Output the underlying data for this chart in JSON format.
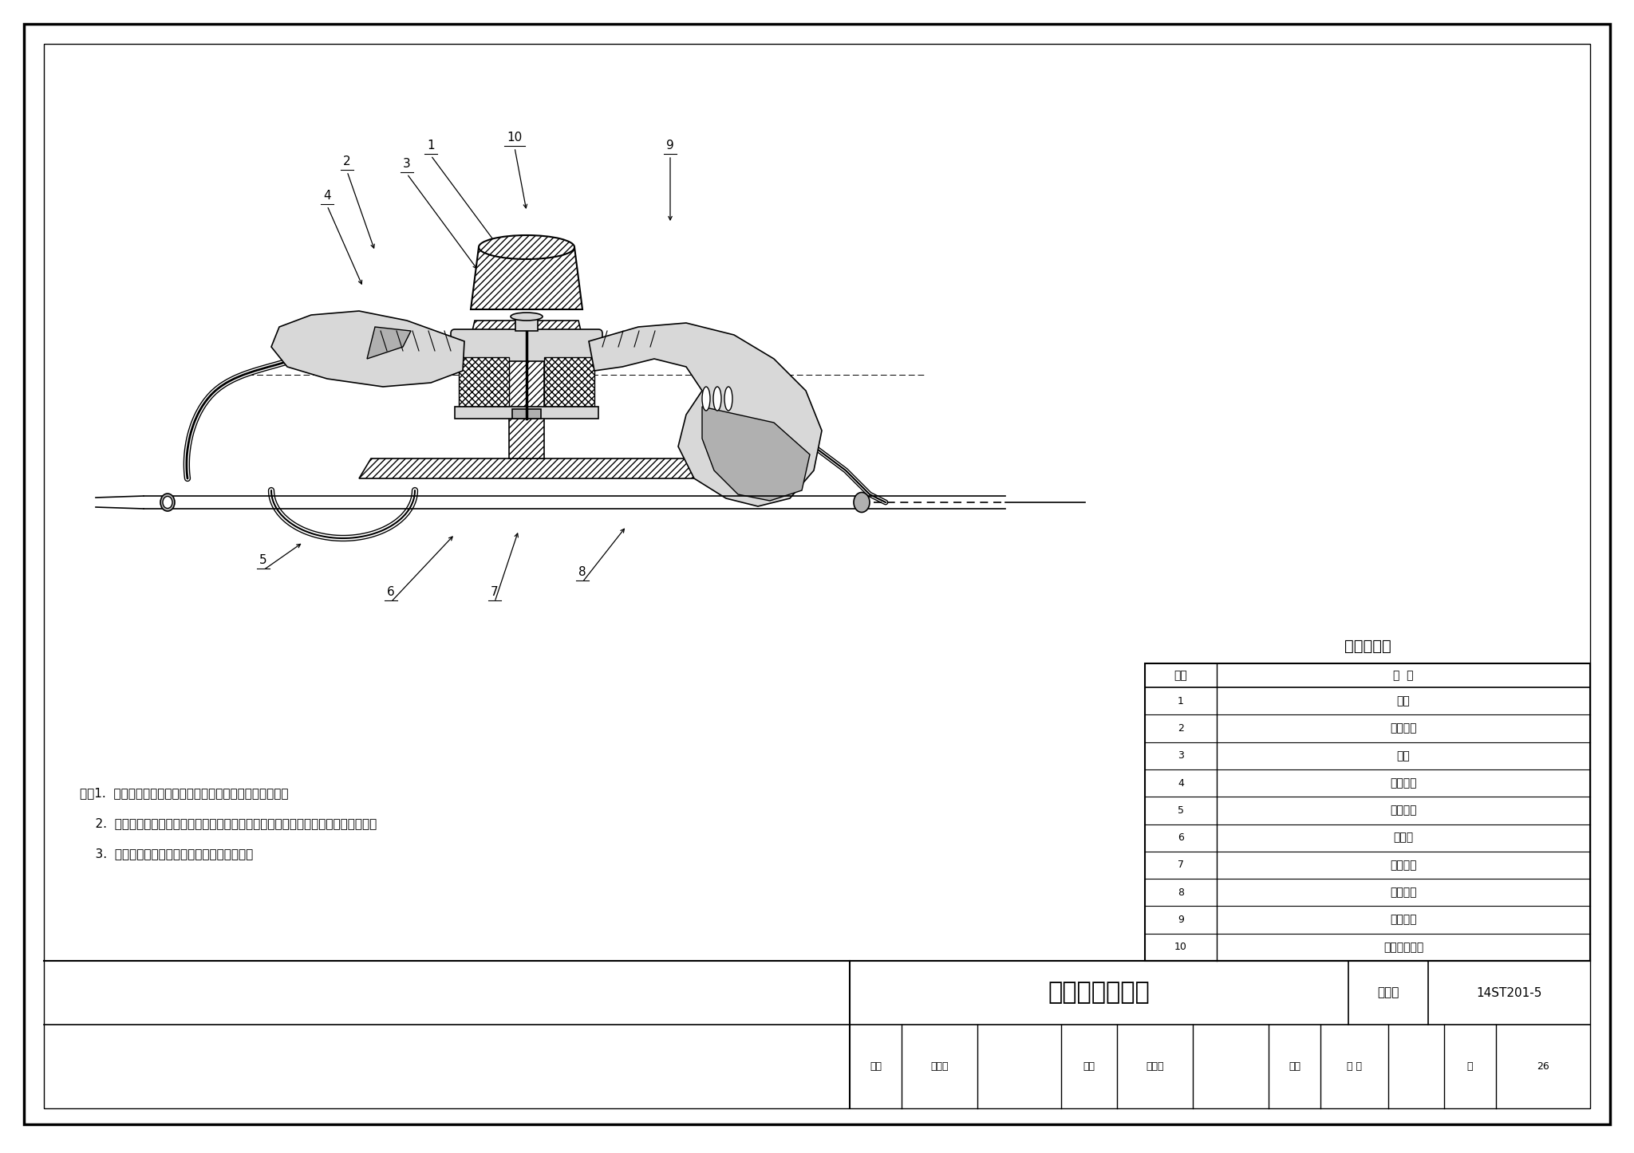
{
  "page_bg": "#ffffff",
  "border_color": "#000000",
  "title_drawing": "计轴磁头安装图",
  "atlas_no": "14ST201-5",
  "page_no": "26",
  "table_title": "名称对照表",
  "table_headers": [
    "序号",
    "名  称"
  ],
  "table_rows": [
    [
      "1",
      "螺栓"
    ],
    [
      "2",
      "接收磁头"
    ],
    [
      "3",
      "垫片"
    ],
    [
      "4",
      "绝缘套管"
    ],
    [
      "5",
      "磁头电缆"
    ],
    [
      "6",
      "防护管"
    ],
    [
      "7",
      "绝缘垫片"
    ],
    [
      "8",
      "固定卡具"
    ],
    [
      "9",
      "发送磁头"
    ],
    [
      "10",
      "自锁六角螺母"
    ]
  ],
  "notes": [
    "注：1.  接收磁头安装在钢轨内侧，发送磁头安装在钢轨外侧。",
    "    2.  接收磁头和发送磁头安装在同一根钢轨上，磁头安装必须用绝缘材料与钢轨隔离。",
    "    3.  磁头安装平稳牢固，螺栓应紧固、无松动。"
  ],
  "atlas_label": "图集号",
  "line_color": "#000000",
  "gray_light": "#d8d8d8",
  "gray_mid": "#b0b0b0",
  "gray_dark": "#888888",
  "hatch_density": "////",
  "label_numbers": [
    "1",
    "2",
    "3",
    "4",
    "5",
    "6",
    "7",
    "8",
    "9",
    "10"
  ]
}
